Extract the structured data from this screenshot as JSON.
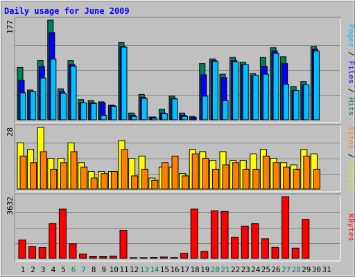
{
  "title": "Daily usage for June 2009",
  "colors": {
    "background": "#C0C0C0",
    "title": "#0000FF",
    "hits": "#00805C",
    "files": "#0000FF",
    "pages": "#00C0FF",
    "visits": "#FFFF00",
    "sites": "#FF8000",
    "kbytes": "#FF0000",
    "weekend_label": "#00805C",
    "weekday_label": "#000000"
  },
  "chart_data": [
    {
      "type": "bar",
      "name": "hits-files-pages",
      "ymax_label": "177",
      "ymax": 177,
      "side_label": [
        {
          "text": "Hits",
          "color": "#00805C"
        },
        {
          "text": "Files",
          "color": "#0000FF"
        },
        {
          "text": "Pages",
          "color": "#00C0FF"
        }
      ],
      "series": [
        {
          "key": "hits",
          "color": "#00805C",
          "values": [
            93,
            53,
            105,
            177,
            55,
            105,
            36,
            34,
            32,
            26,
            137,
            12,
            45,
            5,
            19,
            42,
            12,
            6,
            100,
            108,
            81,
            111,
            102,
            82,
            111,
            128,
            112,
            59,
            68,
            130
          ]
        },
        {
          "key": "files",
          "color": "#0000FF",
          "values": [
            70,
            50,
            95,
            155,
            50,
            98,
            30,
            30,
            30,
            25,
            130,
            8,
            40,
            5,
            12,
            38,
            8,
            4,
            80,
            105,
            75,
            105,
            98,
            78,
            95,
            122,
            100,
            52,
            62,
            125
          ]
        },
        {
          "key": "pages",
          "color": "#00C0FF",
          "values": [
            48,
            50,
            74,
            108,
            47,
            95,
            30,
            29,
            8,
            24,
            129,
            6,
            38,
            3,
            11,
            37,
            6,
            0,
            42,
            104,
            34,
            103,
            98,
            79,
            81,
            118,
            63,
            52,
            62,
            122
          ]
        }
      ]
    },
    {
      "type": "bar",
      "name": "visits-sites",
      "ymax_label": "28",
      "ymax": 28,
      "side_label": [
        {
          "text": "Visits",
          "color": "#E8E800"
        },
        {
          "text": "Sites",
          "color": "#FF8000"
        }
      ],
      "series": [
        {
          "key": "visits",
          "color": "#FFFF00",
          "values": [
            21,
            18,
            28,
            14,
            14,
            21,
            12,
            8,
            8,
            8,
            22,
            14,
            15,
            5,
            10,
            10,
            7,
            18,
            17,
            13,
            17,
            13,
            13,
            16,
            18,
            14,
            12,
            11,
            18,
            16
          ]
        },
        {
          "key": "sites",
          "color": "#FF8000",
          "values": [
            15,
            12,
            17,
            9,
            12,
            17,
            10,
            5,
            7,
            8,
            18,
            6,
            9,
            4,
            12,
            15,
            6,
            16,
            14,
            9,
            11,
            12,
            9,
            9,
            15,
            12,
            10,
            9,
            15,
            9
          ]
        }
      ]
    },
    {
      "type": "bar",
      "name": "kbytes",
      "ymax_label": "3632",
      "ymax": 3632,
      "side_label": [
        {
          "text": "KBytes",
          "color": "#FF0000"
        }
      ],
      "series": [
        {
          "key": "kbytes",
          "color": "#FF0000",
          "values": [
            1080,
            700,
            630,
            2050,
            2900,
            860,
            250,
            100,
            100,
            120,
            1650,
            40,
            40,
            60,
            80,
            50,
            300,
            2900,
            400,
            2800,
            2760,
            1250,
            1900,
            2050,
            1150,
            640,
            3632,
            600,
            2300,
            0
          ]
        }
      ]
    }
  ],
  "x_labels": [
    "1",
    "2",
    "3",
    "4",
    "5",
    "6",
    "7",
    "8",
    "9",
    "10",
    "11",
    "12",
    "13",
    "14",
    "15",
    "16",
    "17",
    "18",
    "19",
    "20",
    "21",
    "22",
    "23",
    "24",
    "25",
    "26",
    "27",
    "28",
    "29",
    "30",
    "31"
  ],
  "weekend_days": [
    6,
    7,
    13,
    14,
    20,
    21,
    27,
    28
  ]
}
